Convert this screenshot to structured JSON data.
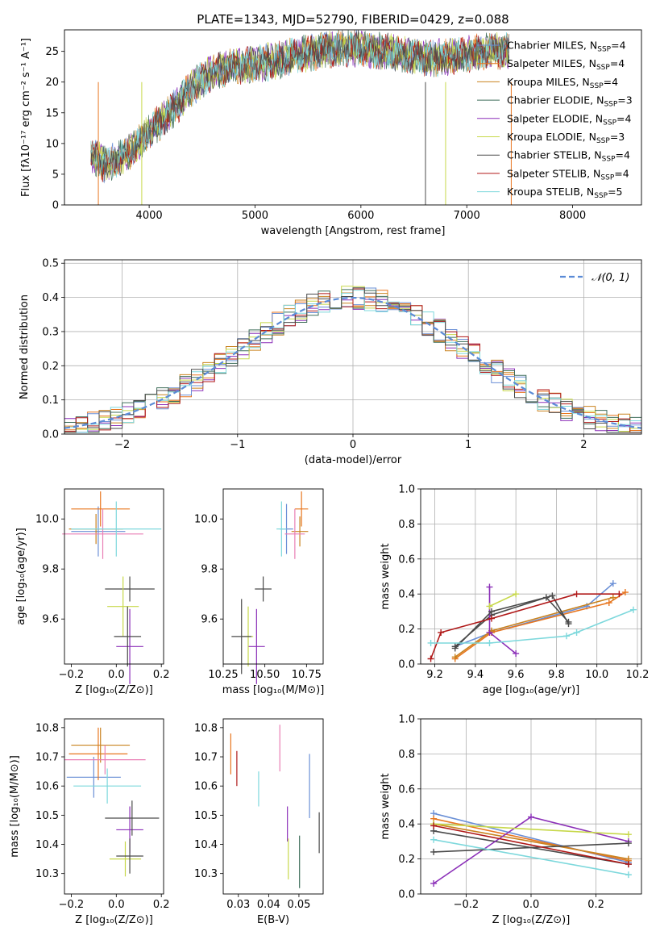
{
  "colors": {
    "chabrier_miles": "#6a8fd6",
    "salpeter_miles": "#e8761f",
    "kroupa_miles": "#c9821f",
    "chabrier_elodie": "#3f6e5a",
    "salpeter_elodie": "#8b2fb8",
    "kroupa_elodie": "#c7d84a",
    "chabrier_stelib": "#4a4a4a",
    "salpeter_stelib": "#b01818",
    "kroupa_stelib": "#7dd8dc",
    "pink": "#e97fb5",
    "gauss": "#5b8bd6"
  },
  "chart_data": [
    {
      "id": "spectrum",
      "type": "line",
      "title": "PLATE=1343, MJD=52790, FIBERID=0429, z=0.088",
      "xlabel": "wavelength [Angstrom, rest frame]",
      "ylabel": "Flux [fλ10⁻¹⁷ erg cm⁻² s⁻¹ A⁻¹]",
      "xlim": [
        3200,
        8650
      ],
      "ylim": [
        0,
        28.5
      ],
      "xticks": [
        "4000",
        "5000",
        "6000",
        "7000",
        "8000"
      ],
      "yticks": [
        "0",
        "5",
        "10",
        "15",
        "20",
        "25"
      ],
      "grid": false,
      "legend_position": "top-right",
      "x": [
        3450,
        3600,
        3800,
        3900,
        4000,
        4100,
        4200,
        4300,
        4400,
        4500,
        4600,
        4700,
        4800,
        5000,
        5200,
        5400,
        5600,
        5800,
        6000,
        6200,
        6400,
        6600,
        6800,
        7000,
        7200,
        7400
      ],
      "y": [
        8,
        6.5,
        8.5,
        10,
        12,
        13.5,
        15,
        17,
        19,
        20.5,
        21.5,
        22,
        22.5,
        23,
        23.5,
        24.5,
        25,
        25.5,
        25.5,
        25,
        24.5,
        24,
        24,
        24.5,
        25,
        25
      ],
      "series": [
        {
          "name": "Chabrier MILES, N$_{SSP}$=4"
        },
        {
          "name": "Salpeter MILES, N$_{SSP}$=4"
        },
        {
          "name": "Kroupa MILES, N$_{SSP}$=4"
        },
        {
          "name": "Chabrier ELODIE, N$_{SSP}$=3"
        },
        {
          "name": "Salpeter ELODIE, N$_{SSP}$=4"
        },
        {
          "name": "Kroupa ELODIE, N$_{SSP}$=3"
        },
        {
          "name": "Chabrier STELIB, N$_{SSP}$=4"
        },
        {
          "name": "Salpeter STELIB, N$_{SSP}$=4"
        },
        {
          "name": "Kroupa STELIB, N$_{SSP}$=5"
        }
      ],
      "legend_labels": [
        "Chabrier MILES, N",
        "Salpeter MILES, N",
        "Kroupa MILES, N",
        "Chabrier ELODIE, N",
        "Salpeter ELODIE, N",
        "Kroupa ELODIE, N",
        "Chabrier STELIB, N",
        "Salpeter STELIB, N",
        "Kroupa STELIB, N"
      ],
      "legend_counts": [
        "=4",
        "=4",
        "=4",
        "=3",
        "=4",
        "=3",
        "=4",
        "=4",
        "=5"
      ],
      "legend_sub": "SSP"
    },
    {
      "id": "residuals",
      "type": "line",
      "xlabel": "(data-model)/error",
      "ylabel": "Normed distribution",
      "xlim": [
        -2.5,
        2.5
      ],
      "ylim": [
        0,
        0.51
      ],
      "xticks": [
        "−2",
        "−1",
        "0",
        "1",
        "2"
      ],
      "yticks": [
        "0.0",
        "0.1",
        "0.2",
        "0.3",
        "0.4",
        "0.5"
      ],
      "grid": true,
      "legend": "𝒩(0, 1)",
      "legend_position": "top-right"
    },
    {
      "id": "age_vs_Z",
      "type": "scatter",
      "xlabel": "Z [log₁₀(Z/Z⊙)]",
      "ylabel": "age  [log₁₀(age/yr)]",
      "xlim": [
        -0.23,
        0.21
      ],
      "ylim": [
        9.42,
        10.12
      ],
      "xticks": [
        "−0.2",
        "0.0",
        "0.2"
      ],
      "yticks": [
        "9.6",
        "9.8",
        "10.0"
      ],
      "points": [
        {
          "x": -0.08,
          "y": 9.95,
          "xerr": 0.12,
          "yerr": 0.1
        },
        {
          "x": -0.07,
          "y": 10.04,
          "xerr": 0.13,
          "yerr": 0.07
        },
        {
          "x": -0.09,
          "y": 9.96,
          "xerr": 0.12,
          "yerr": 0.06
        },
        {
          "x": -0.06,
          "y": 9.94,
          "xerr": 0.18,
          "yerr": 0.1
        },
        {
          "x": 0.0,
          "y": 9.96,
          "xerr": 0.2,
          "yerr": 0.11
        },
        {
          "x": 0.06,
          "y": 9.49,
          "xerr": 0.06,
          "yerr": 0.15
        },
        {
          "x": 0.06,
          "y": 9.72,
          "xerr": 0.11,
          "yerr": 0.05
        },
        {
          "x": 0.03,
          "y": 9.65,
          "xerr": 0.07,
          "yerr": 0.12
        },
        {
          "x": 0.05,
          "y": 9.53,
          "xerr": 0.06,
          "yerr": 0.12
        }
      ]
    },
    {
      "id": "age_vs_mass",
      "type": "scatter",
      "xlabel": "mass [log₁₀(M/M⊙)]",
      "xlim": [
        10.25,
        10.85
      ],
      "ylim": [
        9.42,
        10.12
      ],
      "xticks": [
        "10.25",
        "10.50",
        "10.75"
      ],
      "yticks": [
        "9.6",
        "9.8",
        "10.0"
      ],
      "points": [
        {
          "x": 10.63,
          "y": 9.96,
          "xerr": 0.04,
          "yerr": 0.1
        },
        {
          "x": 10.72,
          "y": 10.04,
          "xerr": 0.04,
          "yerr": 0.07
        },
        {
          "x": 10.71,
          "y": 9.95,
          "xerr": 0.05,
          "yerr": 0.06
        },
        {
          "x": 10.68,
          "y": 9.94,
          "xerr": 0.06,
          "yerr": 0.1
        },
        {
          "x": 10.6,
          "y": 9.96,
          "xerr": 0.03,
          "yerr": 0.11
        },
        {
          "x": 10.45,
          "y": 9.49,
          "xerr": 0.05,
          "yerr": 0.15
        },
        {
          "x": 10.49,
          "y": 9.72,
          "xerr": 0.05,
          "yerr": 0.05
        },
        {
          "x": 10.4,
          "y": 9.53,
          "xerr": 0.03,
          "yerr": 0.12
        },
        {
          "x": 10.36,
          "y": 9.53,
          "xerr": 0.06,
          "yerr": 0.15
        }
      ]
    },
    {
      "id": "weight_vs_age",
      "type": "line",
      "xlabel": "age  [log₁₀(age/yr)]",
      "ylabel": "mass weight",
      "xlim": [
        9.13,
        10.22
      ],
      "ylim": [
        0,
        1
      ],
      "xticks": [
        "9.2",
        "9.4",
        "9.6",
        "9.8",
        "10.0",
        "10.2"
      ],
      "yticks": [
        "0.0",
        "0.2",
        "0.4",
        "0.6",
        "0.8",
        "1.0"
      ],
      "grid": true,
      "series": [
        {
          "x": [
            9.3,
            9.48,
            9.95,
            10.08
          ],
          "y": [
            0.1,
            0.18,
            0.33,
            0.46
          ]
        },
        {
          "x": [
            9.3,
            9.48,
            10.06,
            10.14
          ],
          "y": [
            0.03,
            0.18,
            0.35,
            0.41
          ]
        },
        {
          "x": [
            9.3,
            9.48,
            10.08
          ],
          "y": [
            0.04,
            0.19,
            0.38
          ]
        },
        {
          "x": [
            9.3,
            9.48,
            9.75,
            9.86
          ],
          "y": [
            0.1,
            0.28,
            0.38,
            0.24
          ]
        },
        {
          "x": [
            9.47,
            9.47,
            9.6
          ],
          "y": [
            0.44,
            0.18,
            0.06
          ]
        },
        {
          "x": [
            9.47,
            9.6
          ],
          "y": [
            0.33,
            0.4
          ]
        },
        {
          "x": [
            9.3,
            9.48,
            9.78,
            9.86
          ],
          "y": [
            0.09,
            0.3,
            0.39,
            0.23
          ]
        },
        {
          "x": [
            9.18,
            9.23,
            9.48,
            9.9,
            10.11
          ],
          "y": [
            0.03,
            0.18,
            0.26,
            0.4,
            0.4
          ]
        },
        {
          "x": [
            9.18,
            9.47,
            9.85,
            9.9,
            10.18
          ],
          "y": [
            0.12,
            0.12,
            0.16,
            0.18,
            0.31
          ]
        }
      ]
    },
    {
      "id": "mass_vs_Z",
      "type": "scatter",
      "xlabel": "Z [log₁₀(Z/Z⊙)]",
      "ylabel": "mass [log₁₀(M/M⊙)]",
      "xlim": [
        -0.23,
        0.21
      ],
      "ylim": [
        10.23,
        10.83
      ],
      "xticks": [
        "−0.2",
        "0.0",
        "0.2"
      ],
      "yticks": [
        "10.3",
        "10.4",
        "10.5",
        "10.6",
        "10.7",
        "10.8"
      ],
      "points": [
        {
          "x": -0.1,
          "y": 10.63,
          "xerr": 0.12,
          "yerr": 0.07
        },
        {
          "x": -0.08,
          "y": 10.71,
          "xerr": 0.13,
          "yerr": 0.09
        },
        {
          "x": -0.07,
          "y": 10.74,
          "xerr": 0.13,
          "yerr": 0.06
        },
        {
          "x": -0.05,
          "y": 10.69,
          "xerr": 0.18,
          "yerr": 0.05
        },
        {
          "x": -0.04,
          "y": 10.6,
          "xerr": 0.15,
          "yerr": 0.06
        },
        {
          "x": 0.06,
          "y": 10.45,
          "xerr": 0.06,
          "yerr": 0.08
        },
        {
          "x": 0.07,
          "y": 10.49,
          "xerr": 0.12,
          "yerr": 0.06
        },
        {
          "x": 0.04,
          "y": 10.35,
          "xerr": 0.07,
          "yerr": 0.06
        },
        {
          "x": 0.06,
          "y": 10.36,
          "xerr": 0.06,
          "yerr": 0.06
        }
      ]
    },
    {
      "id": "mass_vs_ebv",
      "type": "scatter",
      "xlabel": "E(B-V)",
      "xlim": [
        0.025,
        0.058
      ],
      "ylim": [
        10.23,
        10.83
      ],
      "xticks": [
        "0.03",
        "0.04",
        "0.05"
      ],
      "yticks": [
        "10.3",
        "10.4",
        "10.5",
        "10.6",
        "10.7",
        "10.8"
      ],
      "points": [
        {
          "x": 0.0275,
          "y": 10.71,
          "yerr": 0.07
        },
        {
          "x": 0.0295,
          "y": 10.66,
          "yerr": 0.06
        },
        {
          "x": 0.0367,
          "y": 10.59,
          "yerr": 0.06
        },
        {
          "x": 0.0437,
          "y": 10.73,
          "yerr": 0.08
        },
        {
          "x": 0.0462,
          "y": 10.47,
          "yerr": 0.06
        },
        {
          "x": 0.0465,
          "y": 10.35,
          "yerr": 0.07
        },
        {
          "x": 0.0502,
          "y": 10.34,
          "yerr": 0.09
        },
        {
          "x": 0.0535,
          "y": 10.6,
          "yerr": 0.11
        },
        {
          "x": 0.0567,
          "y": 10.44,
          "yerr": 0.07
        }
      ]
    },
    {
      "id": "weight_vs_Z",
      "type": "line",
      "xlabel": "Z [log₁₀(Z/Z⊙)]",
      "ylabel": "mass weight",
      "xlim": [
        -0.34,
        0.34
      ],
      "ylim": [
        0,
        1
      ],
      "xticks": [
        "−0.2",
        "0.0",
        "0.2"
      ],
      "yticks": [
        "0.0",
        "0.2",
        "0.4",
        "0.6",
        "0.8",
        "1.0"
      ],
      "grid": true,
      "series": [
        {
          "x": [
            -0.3,
            0.3
          ],
          "y": [
            0.46,
            0.18
          ]
        },
        {
          "x": [
            -0.3,
            0.3
          ],
          "y": [
            0.43,
            0.19
          ]
        },
        {
          "x": [
            -0.3,
            0.3
          ],
          "y": [
            0.4,
            0.2
          ]
        },
        {
          "x": [
            -0.3,
            0.3
          ],
          "y": [
            0.36,
            0.17
          ]
        },
        {
          "x": [
            -0.3,
            0.0,
            0.3
          ],
          "y": [
            0.06,
            0.44,
            0.3
          ]
        },
        {
          "x": [
            -0.3,
            0.3
          ],
          "y": [
            0.4,
            0.34
          ]
        },
        {
          "x": [
            -0.3,
            0.3
          ],
          "y": [
            0.24,
            0.29
          ]
        },
        {
          "x": [
            -0.3,
            0.3
          ],
          "y": [
            0.39,
            0.17
          ]
        },
        {
          "x": [
            -0.3,
            0.3
          ],
          "y": [
            0.31,
            0.11
          ]
        }
      ]
    }
  ]
}
